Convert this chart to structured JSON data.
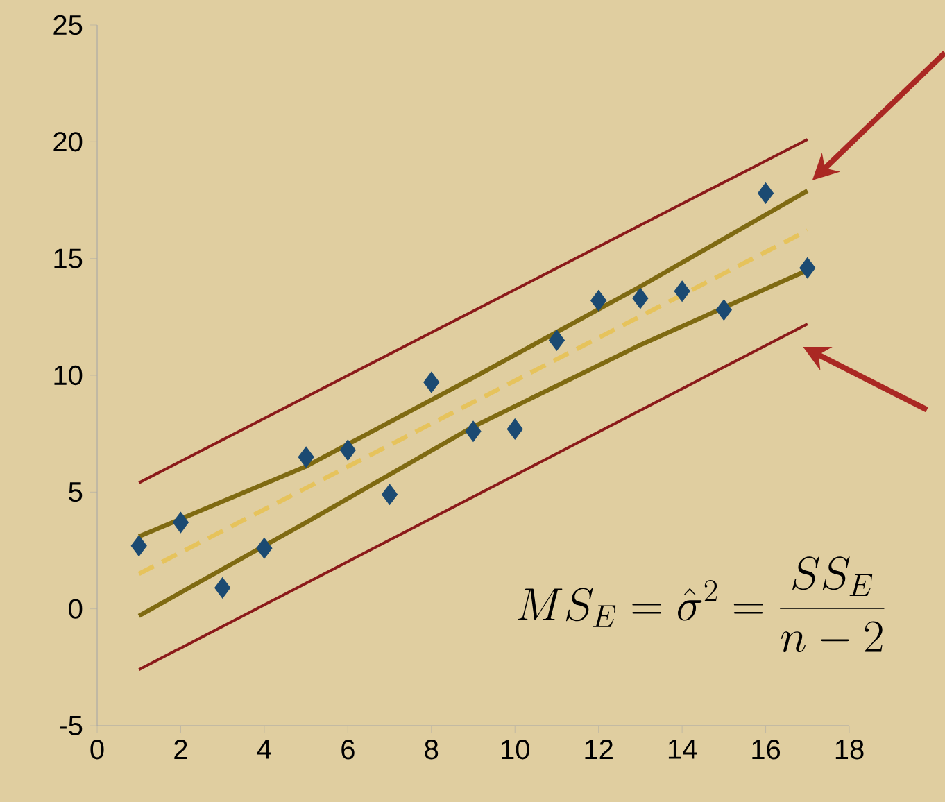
{
  "chart_data": {
    "type": "scatter",
    "xlim": [
      0,
      18
    ],
    "ylim": [
      -5,
      25
    ],
    "xticks": [
      0,
      2,
      4,
      6,
      8,
      10,
      12,
      14,
      16,
      18
    ],
    "yticks": [
      -5,
      0,
      5,
      10,
      15,
      20,
      25
    ],
    "annotations": [
      "MS_E = \\hat{\\sigma}^2 = \\frac{SS_E}{n-2}"
    ],
    "series": [
      {
        "type": "line",
        "color": "#8b1a1a",
        "marker": "none",
        "line_style": "solid",
        "x": [
          1,
          17
        ],
        "values": [
          5.4,
          20.1
        ]
      },
      {
        "type": "line",
        "color": "#8b1a1a",
        "marker": "none",
        "line_style": "solid",
        "x": [
          1,
          17
        ],
        "values": [
          -2.6,
          12.2
        ]
      },
      {
        "type": "line",
        "color": "#7f6a12",
        "marker": "none",
        "line_style": "solid",
        "x": [
          1,
          5,
          9,
          13,
          17
        ],
        "values": [
          3.1,
          6.1,
          9.9,
          13.8,
          17.9
        ]
      },
      {
        "type": "line",
        "color": "#7f6a12",
        "marker": "none",
        "line_style": "solid",
        "x": [
          1,
          5,
          9,
          13,
          17
        ],
        "values": [
          -0.3,
          3.7,
          7.8,
          11.3,
          14.5
        ]
      },
      {
        "type": "line",
        "color": "#e6c35c",
        "marker": "none",
        "line_style": "dashed",
        "x": [
          1,
          17
        ],
        "values": [
          1.5,
          16.2
        ]
      },
      {
        "color": "#1b4a72",
        "marker": "diamond",
        "x": [
          1,
          2,
          3,
          4,
          5,
          6,
          7,
          8,
          9,
          10,
          11,
          12,
          13,
          14,
          15,
          16,
          17
        ],
        "values": [
          2.7,
          3.7,
          0.9,
          2.6,
          6.5,
          6.8,
          4.9,
          9.7,
          7.6,
          7.7,
          11.5,
          13.2,
          13.3,
          13.6,
          12.8,
          17.8,
          14.6
        ]
      }
    ]
  }
}
